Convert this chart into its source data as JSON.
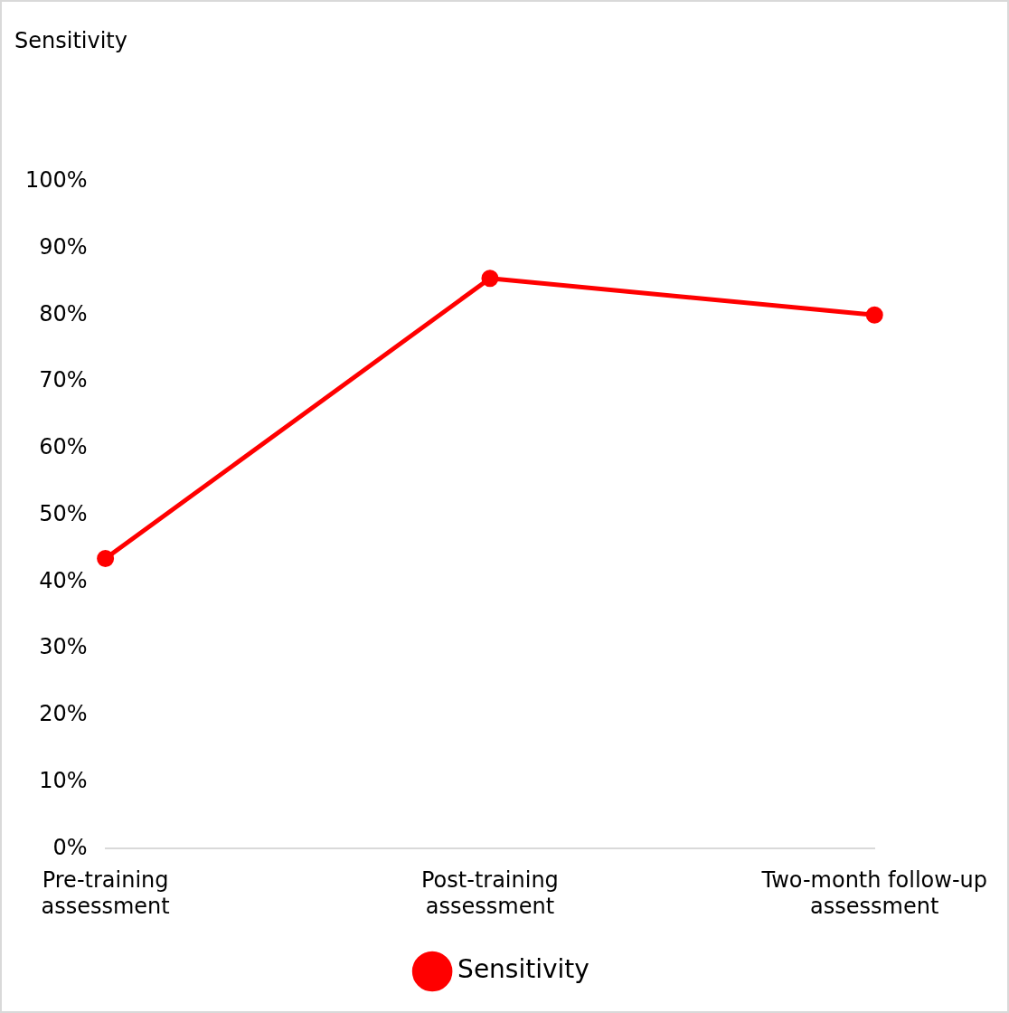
{
  "chart_data": {
    "type": "line",
    "title": "Sensitivity",
    "categories": [
      "Pre-training assessment",
      "Post-training assessment",
      "Two-month follow-up assessment"
    ],
    "series": [
      {
        "name": "Sensitivity",
        "color": "#ff0000",
        "values": [
          43.5,
          85.5,
          80
        ]
      }
    ],
    "ylim": [
      0,
      100
    ],
    "yticks": [
      {
        "value": 0,
        "label": "0%"
      },
      {
        "value": 10,
        "label": "10%"
      },
      {
        "value": 20,
        "label": "20%"
      },
      {
        "value": 30,
        "label": "30%"
      },
      {
        "value": 40,
        "label": "40%"
      },
      {
        "value": 50,
        "label": "50%"
      },
      {
        "value": 60,
        "label": "60%"
      },
      {
        "value": 70,
        "label": "70%"
      },
      {
        "value": 80,
        "label": "80%"
      },
      {
        "value": 90,
        "label": "90%"
      },
      {
        "value": 100,
        "label": "100%"
      }
    ],
    "grid": false,
    "legend": "bottom",
    "marker": "circle",
    "line_style": "solid"
  }
}
